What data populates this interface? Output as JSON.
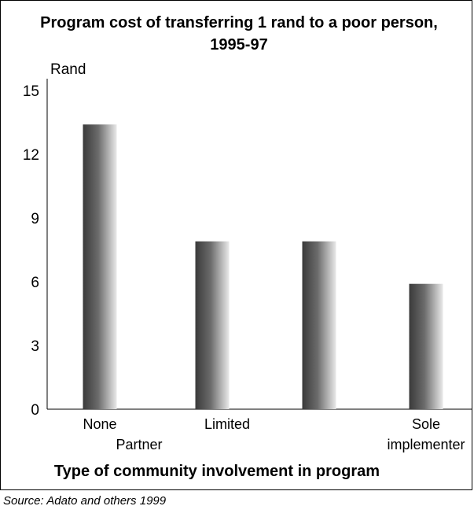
{
  "chart_data": {
    "type": "bar",
    "title": "Program cost of transferring 1 rand to a poor person,",
    "subtitle": "1995-97",
    "ylabel": "Rand",
    "xlabel": "Type of community involvement in program",
    "categories": [
      "None",
      "Partner",
      "Limited",
      "Sole implementer"
    ],
    "category_label_lines": [
      [
        "None"
      ],
      [
        "Partner"
      ],
      [
        "Limited"
      ],
      [
        "Sole",
        "implementer"
      ]
    ],
    "values": [
      13.4,
      7.9,
      7.9,
      5.9
    ],
    "ylim": [
      0,
      15
    ],
    "yticks": [
      0,
      3,
      6,
      9,
      12,
      15
    ],
    "grid": false
  },
  "source": "Source: Adato and others 1999"
}
